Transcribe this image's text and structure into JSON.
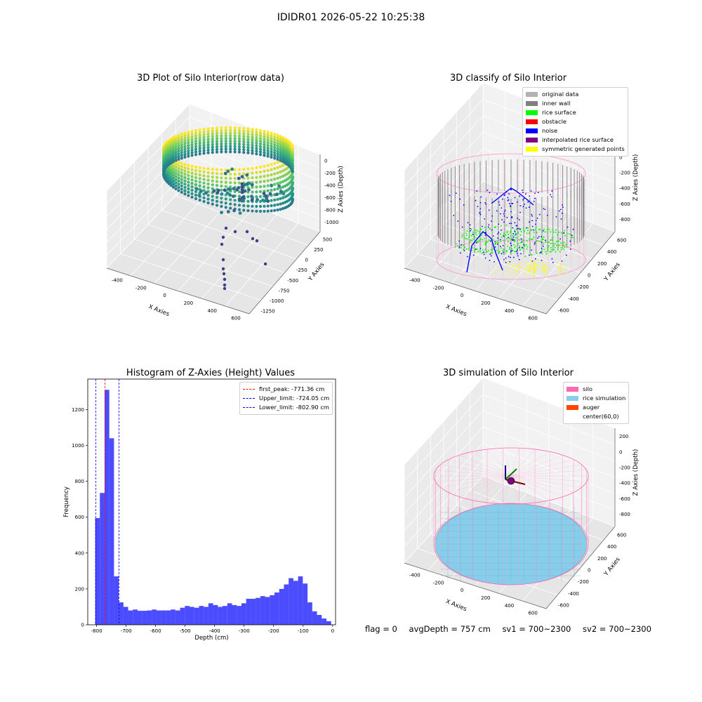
{
  "suptitle": "IDIDR01 2026-05-22 10:25:38",
  "chart_data": [
    {
      "id": "raw",
      "type": "scatter",
      "title": "3D Plot of Silo Interior(row data)",
      "xlabel": "X Axies",
      "ylabel": "Y Axies",
      "zlabel": "Z Axies (Depth)",
      "xticks": [
        "-400",
        "-200",
        "0",
        "200",
        "400",
        "600"
      ],
      "yticks": [
        "500",
        "250",
        "0",
        "-250",
        "-500",
        "-750",
        "-1000",
        "-1250"
      ],
      "zticks": [
        "0",
        "-200",
        "-400",
        "-600",
        "-800",
        "-1000"
      ],
      "colormap": "viridis by depth"
    },
    {
      "id": "classify",
      "type": "scatter",
      "title": "3D classify of Silo Interior",
      "xlabel": "X Axies",
      "ylabel": "Y Axies",
      "zlabel": "Z Axies (Depth)",
      "xticks": [
        "-400",
        "-200",
        "0",
        "200",
        "400",
        "600"
      ],
      "yticks": [
        "600",
        "400",
        "200",
        "0",
        "-200",
        "-400",
        "-600"
      ],
      "zticks": [
        "200",
        "0",
        "-200",
        "-400",
        "-600",
        "-800"
      ],
      "legend": [
        {
          "label": "original data",
          "color": "#b3b3b3"
        },
        {
          "label": "inner wall",
          "color": "#808080"
        },
        {
          "label": "rice surface",
          "color": "#00ff00"
        },
        {
          "label": "obstacle",
          "color": "#ff0000"
        },
        {
          "label": "noise",
          "color": "#0000ff"
        },
        {
          "label": "interpolated rice surface",
          "color": "#800080"
        },
        {
          "label": "symmetric generated points",
          "color": "#ffff00"
        }
      ],
      "legend_extra_top_tick": "400"
    },
    {
      "id": "hist",
      "type": "bar",
      "title": "Histogram of Z-Axies (Height) Values",
      "xlabel": "Depth (cm)",
      "ylabel": "Frequency",
      "xlim": [
        -830,
        10
      ],
      "ylim": [
        0,
        1370
      ],
      "xticks": [
        -800,
        -700,
        -600,
        -500,
        -400,
        -300,
        -200,
        -100,
        0
      ],
      "yticks": [
        0,
        200,
        400,
        600,
        800,
        1000,
        1200
      ],
      "bar_color": "#0000ff",
      "bin_width": 16,
      "bin_starts": [
        -805,
        -789,
        -773,
        -757,
        -741,
        -725,
        -709,
        -693,
        -677,
        -661,
        -645,
        -629,
        -613,
        -597,
        -581,
        -565,
        -549,
        -533,
        -517,
        -501,
        -485,
        -469,
        -453,
        -437,
        -421,
        -405,
        -389,
        -373,
        -357,
        -341,
        -325,
        -309,
        -293,
        -277,
        -261,
        -245,
        -229,
        -213,
        -197,
        -181,
        -165,
        -149,
        -133,
        -117,
        -101,
        -85,
        -69,
        -53,
        -37,
        -21
      ],
      "values": [
        595,
        735,
        1310,
        1040,
        270,
        125,
        100,
        80,
        85,
        78,
        78,
        80,
        85,
        80,
        80,
        80,
        85,
        80,
        95,
        105,
        100,
        95,
        105,
        100,
        120,
        110,
        100,
        105,
        120,
        110,
        105,
        120,
        145,
        145,
        150,
        160,
        155,
        165,
        180,
        200,
        225,
        260,
        245,
        270,
        230,
        125,
        75,
        55,
        35,
        20
      ],
      "vlines": [
        {
          "label": "first_peak: -771.36 cm",
          "value": -771.36,
          "color": "#ff0000"
        },
        {
          "label": "Upper_limit: -724.05 cm",
          "value": -724.05,
          "color": "#0000ff"
        },
        {
          "label": "Lower_limit: -802.90 cm",
          "value": -802.9,
          "color": "#0000ff"
        }
      ]
    },
    {
      "id": "sim",
      "type": "scatter",
      "title": "3D simulation of Silo Interior",
      "xlabel": "X Axies",
      "ylabel": "Y Axies",
      "zlabel": "Z Axies (Depth)",
      "xticks": [
        "-400",
        "-200",
        "0",
        "200",
        "400",
        "600"
      ],
      "yticks": [
        "600",
        "400",
        "200",
        "0",
        "-200",
        "-400",
        "-600"
      ],
      "zticks": [
        "200",
        "0",
        "-200",
        "-400",
        "-600",
        "-800"
      ],
      "legend": [
        {
          "label": "silo",
          "color": "#ff69b4"
        },
        {
          "label": "rice simulation",
          "color": "#87ceeb"
        },
        {
          "label": "auger",
          "color": "#ff4500"
        },
        {
          "label": "center(60,0)",
          "color": "#ffffff"
        }
      ]
    }
  ],
  "footer": {
    "flag": "flag = 0",
    "avg": "avgDepth = 757 cm",
    "sv1": "sv1 = 700~2300",
    "sv2": "sv2 = 700~2300"
  }
}
